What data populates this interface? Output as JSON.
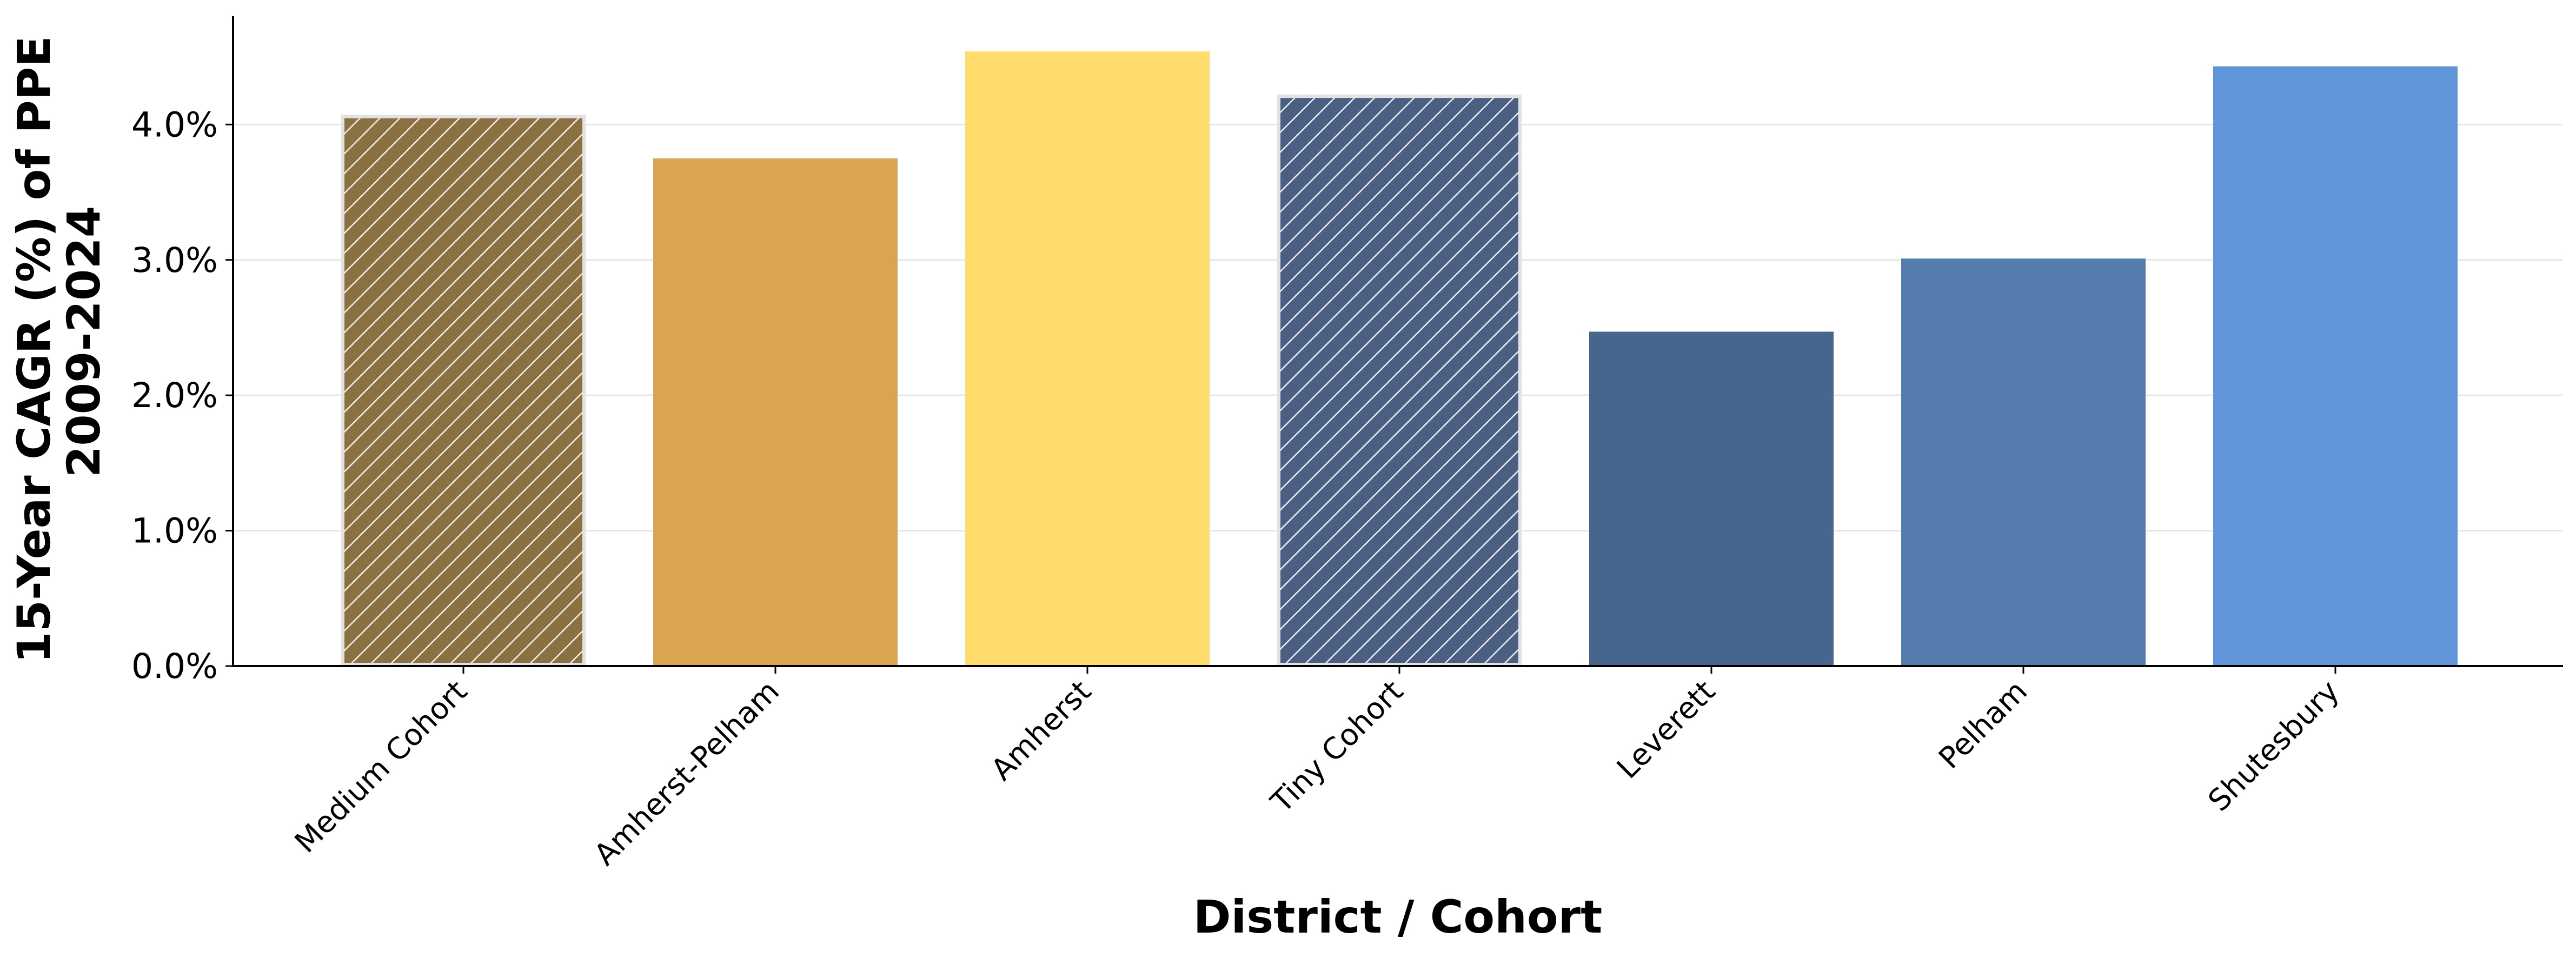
{
  "chart_data": {
    "type": "bar",
    "xlabel": "District / Cohort",
    "ylabel_lines": [
      "15-Year CAGR (%) of PPE",
      "2009-2024"
    ],
    "categories": [
      "Medium Cohort",
      "Amherst-Pelham",
      "Amherst",
      "Tiny Cohort",
      "Leverett",
      "Pelham",
      "Shutesbury"
    ],
    "values": [
      4.07,
      3.75,
      4.54,
      4.22,
      2.47,
      3.01,
      4.43
    ],
    "colors": [
      "#8b7042",
      "#d9a54f",
      "#ffdc6b",
      "#4b5f82",
      "#47668e",
      "#547dae",
      "#6195da"
    ],
    "hatched": [
      true,
      false,
      false,
      true,
      false,
      false,
      false
    ],
    "ylim": [
      0,
      4.8
    ],
    "yticks": [
      0,
      1,
      2,
      3,
      4
    ],
    "ytick_labels": [
      "0.0%",
      "1.0%",
      "2.0%",
      "3.0%",
      "4.0%"
    ],
    "grid": true,
    "legend": "none"
  }
}
